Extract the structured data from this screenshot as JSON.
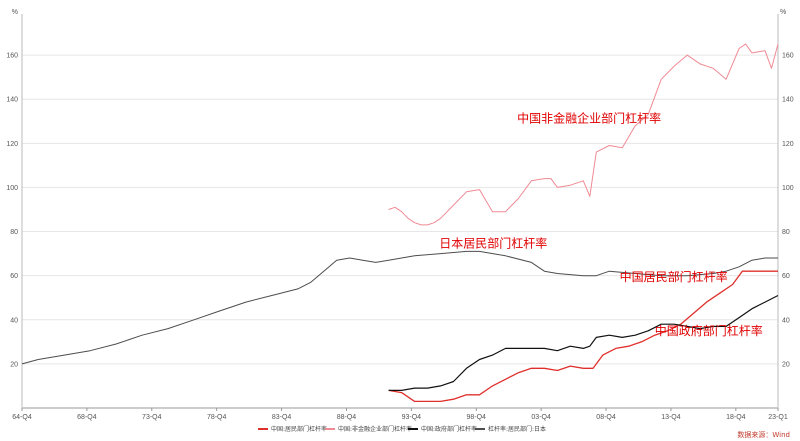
{
  "chart_data": {
    "type": "line",
    "y_unit_left": "%",
    "y_unit_right": "%",
    "ylim": [
      0,
      175
    ],
    "yticks": [
      20,
      40,
      60,
      80,
      100,
      120,
      140,
      160
    ],
    "ytick_labels": [
      "20",
      "40",
      "60",
      "80",
      "100",
      "120",
      "140",
      "160"
    ],
    "xlim": [
      1964.75,
      2023.0
    ],
    "xticks": [
      1964.75,
      1969.75,
      1974.75,
      1979.75,
      1984.75,
      1989.75,
      1994.75,
      1999.75,
      2004.75,
      2009.75,
      2014.75,
      2019.75,
      2023.0
    ],
    "xtick_labels": [
      "64-Q4",
      "68-Q4",
      "73-Q4",
      "78-Q4",
      "83-Q4",
      "88-Q4",
      "93-Q4",
      "98-Q4",
      "03-Q4",
      "08-Q4",
      "13-Q4",
      "18-Q4",
      "23-Q1"
    ],
    "grid": "horizontal",
    "legend_position": "bottom",
    "series": [
      {
        "name": "中国:居民部门杠杆率",
        "color": "#e0302c",
        "width": 1.3,
        "annotation": "中国居民部门杠杆率",
        "ann_pos": [
          2010.8,
          57.5
        ],
        "ann_color": "#e00000",
        "x": [
          1993.0,
          1994.0,
          1995.0,
          1996.0,
          1997.0,
          1998.0,
          1999.0,
          2000.0,
          2001.0,
          2002.0,
          2003.0,
          2004.0,
          2005.0,
          2006.0,
          2007.0,
          2008.0,
          2008.75,
          2009.5,
          2010.5,
          2011.5,
          2012.5,
          2013.5,
          2014.5,
          2015.5,
          2016.5,
          2017.5,
          2018.5,
          2019.5,
          2020.25,
          2021.0,
          2022.0,
          2023.0
        ],
        "y": [
          8,
          7,
          3,
          3,
          3,
          4,
          6,
          6,
          10,
          13,
          16,
          18,
          18,
          17,
          19,
          18,
          18,
          24,
          27,
          28,
          30,
          33,
          35,
          38,
          43,
          48,
          52,
          56,
          62,
          62,
          62,
          62
        ]
      },
      {
        "name": "中国:非金融企业部门杠杆率",
        "color": "#f08a94",
        "width": 1.0,
        "annotation": "中国非金融企业部门杠杆率",
        "ann_pos": [
          2002.9,
          129.5
        ],
        "ann_color": "#e00000",
        "x": [
          1993.0,
          1993.5,
          1994.0,
          1994.5,
          1995.0,
          1995.5,
          1996.0,
          1996.5,
          1997.0,
          1998.0,
          1999.0,
          2000.0,
          2001.0,
          2002.0,
          2003.0,
          2004.0,
          2005.0,
          2005.5,
          2006.0,
          2007.0,
          2008.0,
          2008.5,
          2009.0,
          2010.0,
          2011.0,
          2012.0,
          2013.0,
          2014.0,
          2015.0,
          2016.0,
          2017.0,
          2018.0,
          2019.0,
          2020.0,
          2020.5,
          2021.0,
          2022.0,
          2022.5,
          2023.0
        ],
        "y": [
          90,
          91,
          89,
          86,
          84,
          83,
          83,
          84,
          86,
          92,
          98,
          99,
          89,
          89,
          95,
          103,
          104,
          104,
          100,
          101,
          103,
          96,
          116,
          119,
          118,
          128,
          133,
          149,
          155,
          160,
          156,
          154,
          149,
          163,
          165,
          161,
          162,
          154,
          165
        ]
      },
      {
        "name": "中国:政府部门杠杆率",
        "color": "#111111",
        "width": 1.2,
        "annotation": "中国政府部门杠杆率",
        "ann_pos": [
          2013.5,
          33.0
        ],
        "ann_color": "#e00000",
        "x": [
          1993.0,
          1994.0,
          1995.0,
          1996.0,
          1997.0,
          1998.0,
          1999.0,
          2000.0,
          2001.0,
          2002.0,
          2003.0,
          2004.0,
          2005.0,
          2006.0,
          2007.0,
          2008.0,
          2008.5,
          2009.0,
          2010.0,
          2011.0,
          2012.0,
          2013.0,
          2014.0,
          2015.0,
          2016.0,
          2017.0,
          2018.0,
          2019.0,
          2020.0,
          2021.0,
          2022.0,
          2023.0
        ],
        "y": [
          8,
          8,
          9,
          9,
          10,
          12,
          18,
          22,
          24,
          27,
          27,
          27,
          27,
          26,
          28,
          27,
          28,
          32,
          33,
          32,
          33,
          35,
          38,
          38,
          37,
          36,
          37,
          37,
          41,
          45,
          48,
          51
        ]
      },
      {
        "name": "杠杆率:居民部门:日本",
        "color": "#4d4d4d",
        "width": 1.0,
        "annotation": "日本居民部门杠杆率",
        "ann_pos": [
          1996.9,
          72.8
        ],
        "ann_color": "#e00000",
        "x": [
          1964.75,
          1966.0,
          1968.0,
          1970.0,
          1972.0,
          1974.0,
          1976.0,
          1978.0,
          1980.0,
          1982.0,
          1984.0,
          1986.0,
          1987.0,
          1988.0,
          1989.0,
          1990.0,
          1991.0,
          1992.0,
          1993.0,
          1995.0,
          1997.0,
          1999.0,
          2000.0,
          2002.0,
          2004.0,
          2005.0,
          2006.0,
          2008.0,
          2009.0,
          2010.0,
          2012.0,
          2014.0,
          2016.0,
          2018.0,
          2019.0,
          2020.0,
          2021.0,
          2022.0,
          2023.0
        ],
        "y": [
          20,
          22,
          24,
          26,
          29,
          33,
          36,
          40,
          44,
          48,
          51,
          54,
          57,
          62,
          67,
          68,
          67,
          66,
          67,
          69,
          70,
          71,
          71,
          69,
          66,
          62,
          61,
          60,
          60,
          62,
          61,
          60,
          60,
          61,
          62,
          64,
          67,
          68,
          68
        ]
      }
    ],
    "source_note": "数据来源：Wind"
  }
}
